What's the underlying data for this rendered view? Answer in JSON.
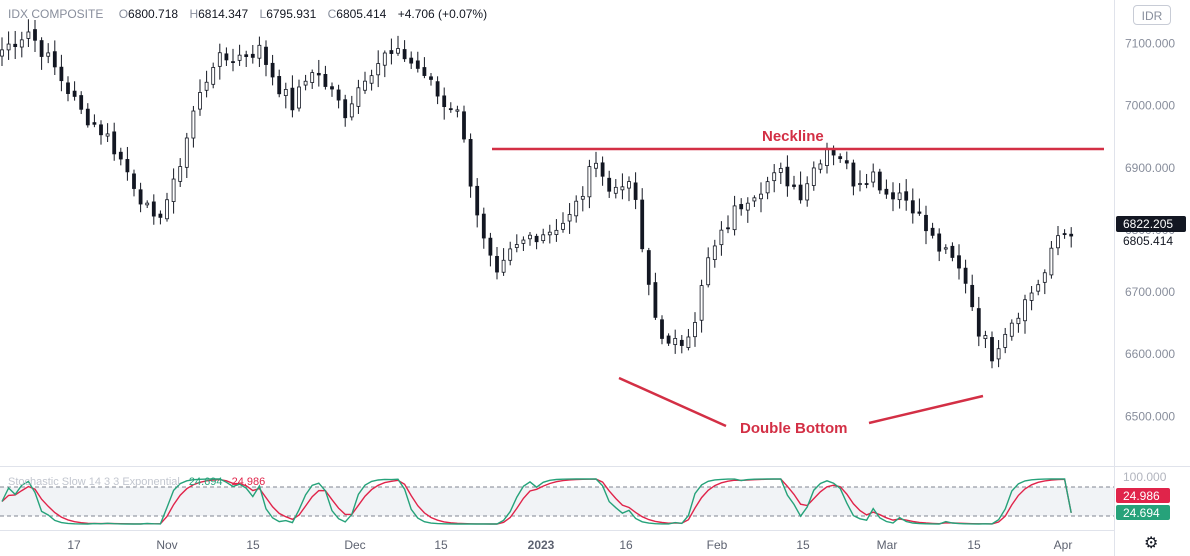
{
  "legend": {
    "symbol": "IDX COMPOSITE",
    "o_label": "O",
    "o_value": "6800.718",
    "h_label": "H",
    "h_value": "6814.347",
    "l_label": "L",
    "l_value": "6795.931",
    "c_label": "C",
    "c_value": "6805.414",
    "change": "+4.706 (+0.07%)"
  },
  "currency_button": "IDR",
  "settings_icon": "gear-icon",
  "annotations": {
    "neckline": "Neckline",
    "double_bottom": "Double Bottom",
    "color": "#d32f45"
  },
  "indicator": {
    "name": "Stochastic Slow 14 3 3 Exponential",
    "k_value": "24.694",
    "d_value": "24.986",
    "top_tick": "100.000",
    "k_color": "#26a27a",
    "d_color": "#e0244a"
  },
  "price_labels": {
    "upper": "6822.205",
    "lower": "6805.414"
  },
  "chart_data": {
    "type": "candlestick",
    "title": "IDX COMPOSITE",
    "ylim": [
      6420,
      7170
    ],
    "y_ticks": [
      "7100.000",
      "7000.000",
      "6900.000",
      "6800.000",
      "6700.000",
      "6600.000",
      "6500.000"
    ],
    "x_ticks": [
      "17",
      "Nov",
      "15",
      "Dec",
      "15",
      "2023",
      "16",
      "Feb",
      "15",
      "Mar",
      "15",
      "Apr"
    ],
    "neckline_level": 6948,
    "grid": false,
    "series": [
      {
        "name": "close",
        "points": [
          [
            0,
            7090
          ],
          [
            4,
            7120
          ],
          [
            8,
            7060
          ],
          [
            12,
            6990
          ],
          [
            16,
            6950
          ],
          [
            20,
            6875
          ],
          [
            23,
            6810
          ],
          [
            26,
            6870
          ],
          [
            29,
            6990
          ],
          [
            32,
            7070
          ],
          [
            36,
            7080
          ],
          [
            39,
            7090
          ],
          [
            42,
            7030
          ],
          [
            44,
            7000
          ],
          [
            47,
            7060
          ],
          [
            50,
            7020
          ],
          [
            52,
            6990
          ],
          [
            55,
            7050
          ],
          [
            58,
            7080
          ],
          [
            61,
            7080
          ],
          [
            64,
            7050
          ],
          [
            67,
            7000
          ],
          [
            69,
            7000
          ],
          [
            71,
            6880
          ],
          [
            73,
            6780
          ],
          [
            75,
            6720
          ],
          [
            77,
            6760
          ],
          [
            80,
            6790
          ],
          [
            83,
            6800
          ],
          [
            86,
            6820
          ],
          [
            88,
            6860
          ],
          [
            90,
            6920
          ],
          [
            92,
            6860
          ],
          [
            94,
            6880
          ],
          [
            96,
            6850
          ],
          [
            97,
            6760
          ],
          [
            99,
            6660
          ],
          [
            101,
            6610
          ],
          [
            103,
            6620
          ],
          [
            105,
            6660
          ],
          [
            107,
            6750
          ],
          [
            109,
            6790
          ],
          [
            111,
            6830
          ],
          [
            113,
            6855
          ],
          [
            115,
            6870
          ],
          [
            118,
            6890
          ],
          [
            121,
            6860
          ],
          [
            123,
            6900
          ],
          [
            125,
            6935
          ],
          [
            127,
            6920
          ],
          [
            129,
            6880
          ],
          [
            132,
            6890
          ],
          [
            134,
            6860
          ],
          [
            136,
            6860
          ],
          [
            138,
            6840
          ],
          [
            140,
            6800
          ],
          [
            142,
            6770
          ],
          [
            144,
            6750
          ],
          [
            146,
            6720
          ],
          [
            148,
            6640
          ],
          [
            150,
            6600
          ],
          [
            152,
            6640
          ],
          [
            154,
            6670
          ],
          [
            156,
            6700
          ],
          [
            158,
            6730
          ],
          [
            160,
            6790
          ],
          [
            162,
            6800
          ]
        ]
      }
    ],
    "stochastic": {
      "name": "Stochastic Slow 14 3 3 Exponential",
      "k_last": 24.694,
      "d_last": 24.986,
      "upper_band": 80,
      "lower_band": 20
    }
  }
}
